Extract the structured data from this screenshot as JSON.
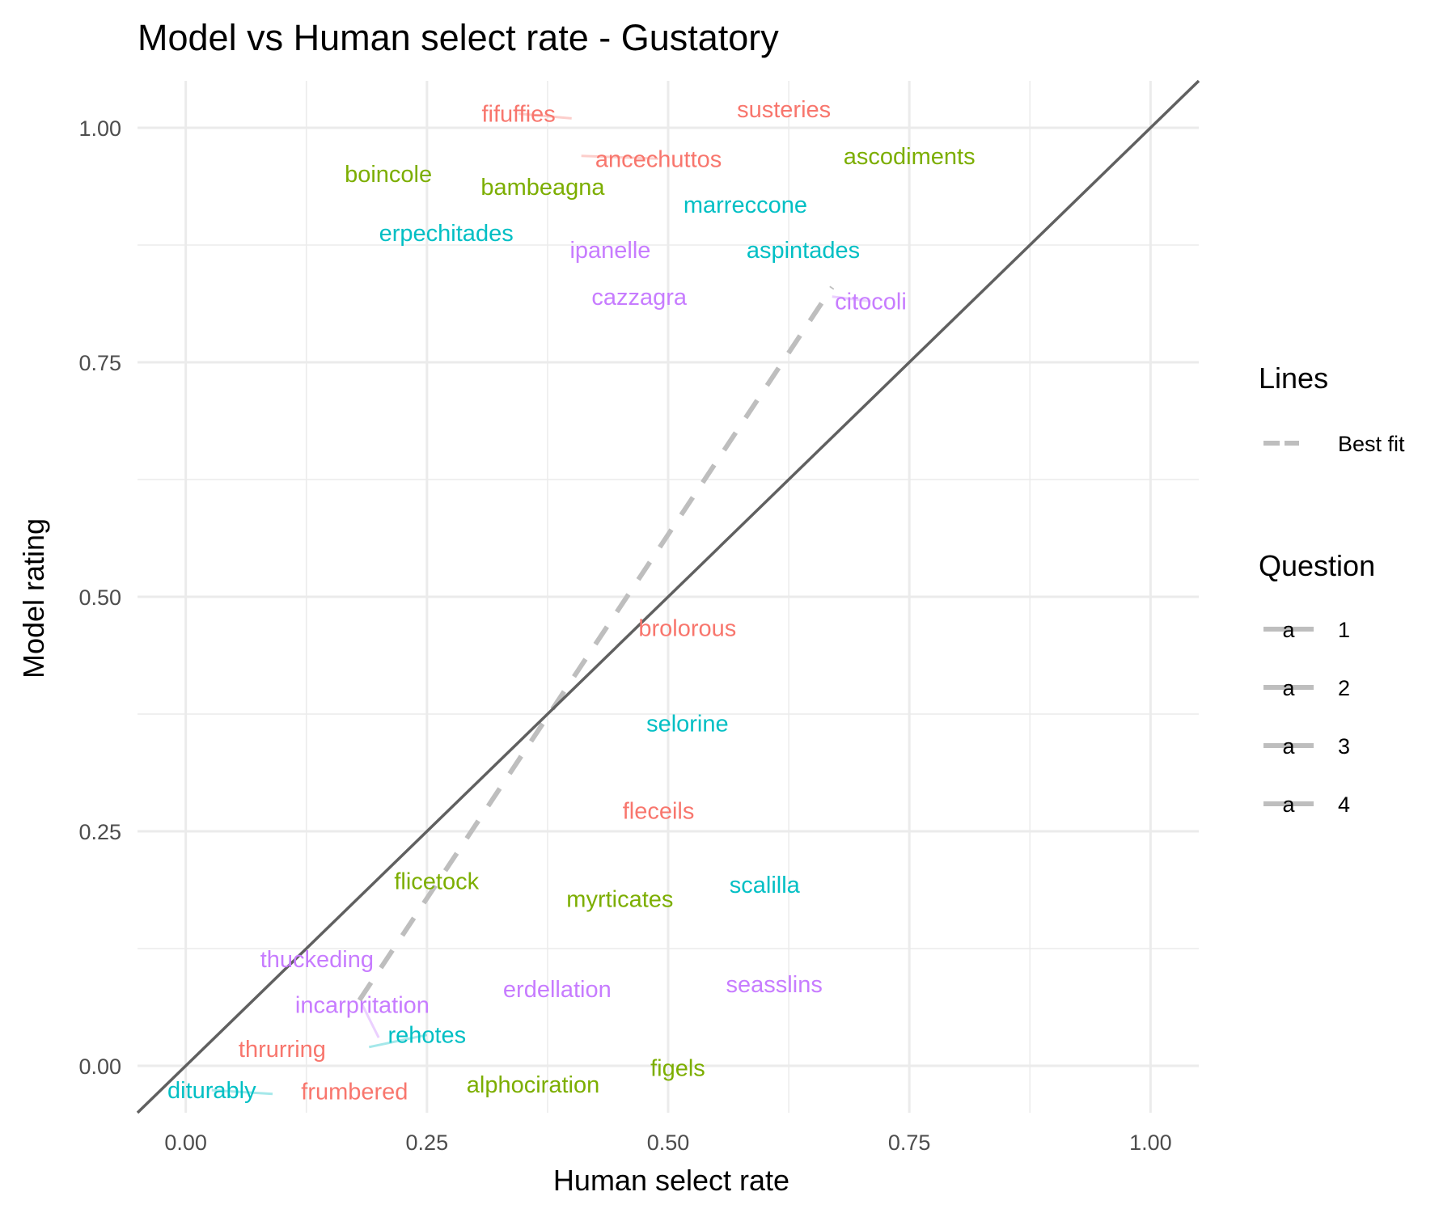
{
  "chart_data": {
    "type": "scatter",
    "title": "Model vs Human select rate - Gustatory",
    "xlabel": "Human select rate",
    "ylabel": "Model rating",
    "xlim": [
      -0.05,
      1.05
    ],
    "ylim": [
      -0.05,
      1.05
    ],
    "xticks": [
      "0.00",
      "0.25",
      "0.50",
      "0.75",
      "1.00"
    ],
    "yticks": [
      "0.00",
      "0.25",
      "0.50",
      "0.75",
      "1.00"
    ],
    "grid": true,
    "reference_line": {
      "from": [
        -0.05,
        -0.05
      ],
      "to": [
        1.05,
        1.05
      ],
      "color": "#606060"
    },
    "best_fit": {
      "from": [
        0.18,
        0.07
      ],
      "to": [
        0.67,
        0.83
      ],
      "color": "#bebebe",
      "style": "dashed"
    },
    "legend_placement": "right",
    "legends": {
      "lines_title": "Lines",
      "lines_items": [
        {
          "label": "Best fit",
          "color": "#bebebe"
        }
      ],
      "question_title": "Question",
      "question_glyph": "a",
      "question_items": [
        {
          "label": "1",
          "color": "#F8766D"
        },
        {
          "label": "2",
          "color": "#7CAE00"
        },
        {
          "label": "3",
          "color": "#00BFC4"
        },
        {
          "label": "4",
          "color": "#C77CFF"
        }
      ]
    },
    "points": [
      {
        "label": "fifuffies",
        "question": 1,
        "x": 0.4,
        "y": 1.01,
        "lx": 0.345,
        "ly": 1.015
      },
      {
        "label": "susteries",
        "question": 1,
        "x": 0.62,
        "y": 1.02,
        "lx": 0.62,
        "ly": 1.02
      },
      {
        "label": "ancechuttos",
        "question": 1,
        "x": 0.41,
        "y": 0.97,
        "lx": 0.49,
        "ly": 0.967
      },
      {
        "label": "ascodiments",
        "question": 2,
        "x": 0.75,
        "y": 0.97,
        "lx": 0.75,
        "ly": 0.97
      },
      {
        "label": "boincole",
        "question": 2,
        "x": 0.21,
        "y": 0.95,
        "lx": 0.21,
        "ly": 0.951
      },
      {
        "label": "bambeagna",
        "question": 2,
        "x": 0.37,
        "y": 0.94,
        "lx": 0.37,
        "ly": 0.937
      },
      {
        "label": "marreccone",
        "question": 3,
        "x": 0.58,
        "y": 0.92,
        "lx": 0.58,
        "ly": 0.918
      },
      {
        "label": "erpechitades",
        "question": 3,
        "x": 0.27,
        "y": 0.89,
        "lx": 0.27,
        "ly": 0.888
      },
      {
        "label": "ipanelle",
        "question": 4,
        "x": 0.44,
        "y": 0.87,
        "lx": 0.44,
        "ly": 0.87
      },
      {
        "label": "aspintades",
        "question": 3,
        "x": 0.64,
        "y": 0.87,
        "lx": 0.64,
        "ly": 0.87
      },
      {
        "label": "cazzagra",
        "question": 4,
        "x": 0.47,
        "y": 0.82,
        "lx": 0.47,
        "ly": 0.82
      },
      {
        "label": "citocoli",
        "question": 4,
        "x": 0.67,
        "y": 0.82,
        "lx": 0.71,
        "ly": 0.815
      },
      {
        "label": "brolorous",
        "question": 1,
        "x": 0.52,
        "y": 0.47,
        "lx": 0.52,
        "ly": 0.467
      },
      {
        "label": "selorine",
        "question": 3,
        "x": 0.52,
        "y": 0.37,
        "lx": 0.52,
        "ly": 0.365
      },
      {
        "label": "fleceils",
        "question": 1,
        "x": 0.49,
        "y": 0.27,
        "lx": 0.49,
        "ly": 0.272
      },
      {
        "label": "flicetock",
        "question": 2,
        "x": 0.26,
        "y": 0.2,
        "lx": 0.26,
        "ly": 0.197
      },
      {
        "label": "scalilla",
        "question": 3,
        "x": 0.6,
        "y": 0.19,
        "lx": 0.6,
        "ly": 0.193
      },
      {
        "label": "myrticates",
        "question": 2,
        "x": 0.45,
        "y": 0.18,
        "lx": 0.45,
        "ly": 0.178
      },
      {
        "label": "thuckeding",
        "question": 4,
        "x": 0.15,
        "y": 0.1,
        "lx": 0.136,
        "ly": 0.114
      },
      {
        "label": "erdellation",
        "question": 4,
        "x": 0.385,
        "y": 0.08,
        "lx": 0.385,
        "ly": 0.082
      },
      {
        "label": "seasslins",
        "question": 4,
        "x": 0.61,
        "y": 0.09,
        "lx": 0.61,
        "ly": 0.087
      },
      {
        "label": "incarpritation",
        "question": 4,
        "x": 0.2,
        "y": 0.03,
        "lx": 0.183,
        "ly": 0.065
      },
      {
        "label": "rehotes",
        "question": 3,
        "x": 0.19,
        "y": 0.02,
        "lx": 0.25,
        "ly": 0.033
      },
      {
        "label": "thrurring",
        "question": 1,
        "x": 0.1,
        "y": 0.02,
        "lx": 0.1,
        "ly": 0.018
      },
      {
        "label": "figels",
        "question": 2,
        "x": 0.51,
        "y": 0.0,
        "lx": 0.51,
        "ly": -0.002
      },
      {
        "label": "alphociration",
        "question": 2,
        "x": 0.36,
        "y": -0.02,
        "lx": 0.36,
        "ly": -0.02
      },
      {
        "label": "diturably",
        "question": 3,
        "x": 0.09,
        "y": -0.03,
        "lx": 0.027,
        "ly": -0.026
      },
      {
        "label": "frumbered",
        "question": 1,
        "x": 0.175,
        "y": -0.025,
        "lx": 0.175,
        "ly": -0.027
      }
    ]
  }
}
